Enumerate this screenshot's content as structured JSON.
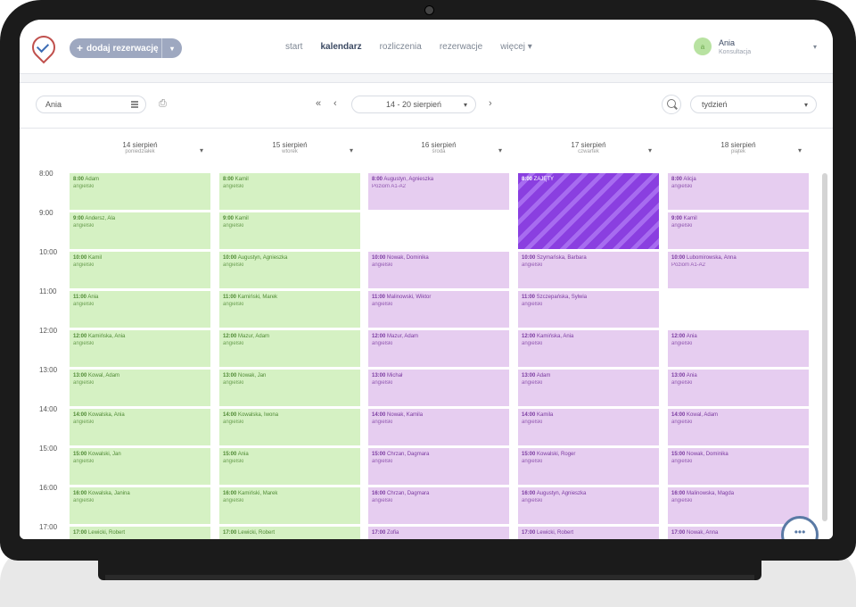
{
  "nav": {
    "add_label": "dodaj rezerwację",
    "links": [
      "start",
      "kalendarz",
      "rozliczenia",
      "rezerwacje",
      "więcej"
    ],
    "active": "kalendarz"
  },
  "user": {
    "initial": "a",
    "name": "Ania",
    "role": "Konsultacja"
  },
  "toolbar": {
    "person": "Ania",
    "week": "14 - 20 sierpień",
    "view": "tydzień"
  },
  "days": [
    {
      "date": "14 sierpień",
      "weekday": "poniedziałek"
    },
    {
      "date": "15 sierpień",
      "weekday": "wtorek"
    },
    {
      "date": "16 sierpień",
      "weekday": "środa"
    },
    {
      "date": "17 sierpień",
      "weekday": "czwartek"
    },
    {
      "date": "18 sierpień",
      "weekday": "piątek"
    }
  ],
  "hours": [
    "8:00",
    "9:00",
    "10:00",
    "11:00",
    "12:00",
    "13:00",
    "14:00",
    "15:00",
    "16:00",
    "17:00"
  ],
  "events": [
    [
      {
        "time": "8:00",
        "name": "Adam",
        "sub": "angielski",
        "color": "green"
      },
      {
        "time": "9:00",
        "name": "Andersz, Ala",
        "sub": "angielski",
        "color": "green"
      },
      {
        "time": "10:00",
        "name": "Kamil",
        "sub": "angielski",
        "color": "green"
      },
      {
        "time": "11:00",
        "name": "Ania",
        "sub": "angielski",
        "color": "green"
      },
      {
        "time": "12:00",
        "name": "Kamińska, Ania",
        "sub": "angielski",
        "color": "green"
      },
      {
        "time": "13:00",
        "name": "Kowal, Adam",
        "sub": "angielski",
        "color": "green"
      },
      {
        "time": "14:00",
        "name": "Kowalska, Ania",
        "sub": "angielski",
        "color": "green"
      },
      {
        "time": "15:00",
        "name": "Kowalski, Jan",
        "sub": "angielski",
        "color": "green"
      },
      {
        "time": "16:00",
        "name": "Kowalska, Janina",
        "sub": "angielski",
        "color": "green"
      },
      {
        "time": "17:00",
        "name": "Lewicki, Robert",
        "sub": "",
        "color": "green"
      }
    ],
    [
      {
        "time": "8:00",
        "name": "Kamil",
        "sub": "angielski",
        "color": "green"
      },
      {
        "time": "9:00",
        "name": "Kamil",
        "sub": "angielski",
        "color": "green"
      },
      {
        "time": "10:00",
        "name": "Augustyn, Agnieszka",
        "sub": "angielski",
        "color": "green"
      },
      {
        "time": "11:00",
        "name": "Kamiński, Marek",
        "sub": "angielski",
        "color": "green"
      },
      {
        "time": "12:00",
        "name": "Mazur, Adam",
        "sub": "angielski",
        "color": "green"
      },
      {
        "time": "13:00",
        "name": "Nowak, Jan",
        "sub": "angielski",
        "color": "green"
      },
      {
        "time": "14:00",
        "name": "Kowalska, Iwona",
        "sub": "angielski",
        "color": "green"
      },
      {
        "time": "15:00",
        "name": "Ania",
        "sub": "angielski",
        "color": "green"
      },
      {
        "time": "16:00",
        "name": "Kamiński, Marek",
        "sub": "angielski",
        "color": "green"
      },
      {
        "time": "17:00",
        "name": "Lewicki, Robert",
        "sub": "",
        "color": "green"
      }
    ],
    [
      {
        "time": "8:00",
        "name": "Augustyn, Agnieszka",
        "sub": "Poziom A1-A2",
        "color": "purple"
      },
      {
        "time": "",
        "name": "",
        "sub": "",
        "color": "empty"
      },
      {
        "time": "10:00",
        "name": "Nowak, Dominika",
        "sub": "angielski",
        "color": "purple"
      },
      {
        "time": "11:00",
        "name": "Malinowski, Wiktor",
        "sub": "angielski",
        "color": "purple"
      },
      {
        "time": "12:00",
        "name": "Mazur, Adam",
        "sub": "angielski",
        "color": "purple"
      },
      {
        "time": "13:00",
        "name": "Michał",
        "sub": "angielski",
        "color": "purple"
      },
      {
        "time": "14:00",
        "name": "Nowak, Kamila",
        "sub": "angielski",
        "color": "purple"
      },
      {
        "time": "15:00",
        "name": "Chrzan, Dagmara",
        "sub": "angielski",
        "color": "purple"
      },
      {
        "time": "16:00",
        "name": "Chrzan, Dagmara",
        "sub": "angielski",
        "color": "purple"
      },
      {
        "time": "17:00",
        "name": "Zofia",
        "sub": "",
        "color": "purple"
      }
    ],
    [
      {
        "time": "8:00",
        "name": "ZAJĘTY",
        "sub": "",
        "color": "striped",
        "span": 2
      },
      {
        "time": "10:00",
        "name": "Szymańska, Barbara",
        "sub": "angielski",
        "color": "purple"
      },
      {
        "time": "11:00",
        "name": "Szczepańska, Sylwia",
        "sub": "angielski",
        "color": "purple"
      },
      {
        "time": "12:00",
        "name": "Kamińska, Ania",
        "sub": "angielski",
        "color": "purple"
      },
      {
        "time": "13:00",
        "name": "Adam",
        "sub": "angielski",
        "color": "purple"
      },
      {
        "time": "14:00",
        "name": "Kamila",
        "sub": "angielski",
        "color": "purple"
      },
      {
        "time": "15:00",
        "name": "Kowalski, Roger",
        "sub": "angielski",
        "color": "purple"
      },
      {
        "time": "16:00",
        "name": "Augustyn, Agnieszka",
        "sub": "angielski",
        "color": "purple"
      },
      {
        "time": "17:00",
        "name": "Lewicki, Robert",
        "sub": "",
        "color": "purple"
      }
    ],
    [
      {
        "time": "8:00",
        "name": "Alicja",
        "sub": "angielski",
        "color": "purple"
      },
      {
        "time": "9:00",
        "name": "Kamil",
        "sub": "angielski",
        "color": "purple"
      },
      {
        "time": "10:00",
        "name": "Lubomirowska, Anna",
        "sub": "Poziom A1-A2",
        "color": "purple"
      },
      {
        "time": "",
        "name": "",
        "sub": "",
        "color": "empty"
      },
      {
        "time": "12:00",
        "name": "Ania",
        "sub": "angielski",
        "color": "purple"
      },
      {
        "time": "13:00",
        "name": "Ania",
        "sub": "angielski",
        "color": "purple"
      },
      {
        "time": "14:00",
        "name": "Kowal, Adam",
        "sub": "angielski",
        "color": "purple"
      },
      {
        "time": "15:00",
        "name": "Nowak, Dominika",
        "sub": "angielski",
        "color": "purple"
      },
      {
        "time": "16:00",
        "name": "Malinowska, Magda",
        "sub": "angielski",
        "color": "purple"
      },
      {
        "time": "17:00",
        "name": "Nowak, Anna",
        "sub": "",
        "color": "purple"
      }
    ]
  ],
  "colors": {
    "green_bg": "#d5f1c3",
    "purple_bg": "#e6cdf0",
    "busy": "#8a3fe0"
  },
  "chat_icon": "chat-bubble-icon"
}
